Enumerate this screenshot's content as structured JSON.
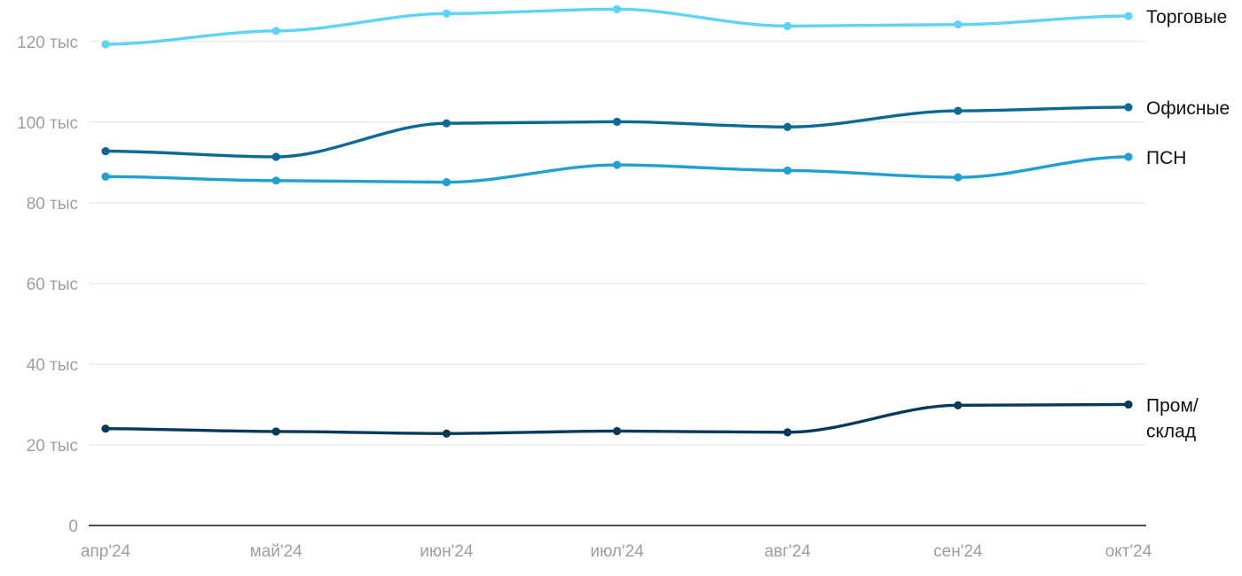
{
  "chart_data": {
    "type": "line",
    "title": "",
    "xlabel": "",
    "ylabel": "",
    "categories": [
      "апр'24",
      "май'24",
      "июн'24",
      "июл'24",
      "авг'24",
      "сен'24",
      "окт'24"
    ],
    "ylim": [
      0,
      125000
    ],
    "yticks": [
      0,
      20000,
      40000,
      60000,
      80000,
      100000,
      120000
    ],
    "ytick_labels": [
      "0",
      "20 тыс",
      "40 тыс",
      "60 тыс",
      "80 тыс",
      "100 тыс",
      "120 тыс"
    ],
    "grid": true,
    "legend": "series labels at right end of lines",
    "series": [
      {
        "name": "Торговые",
        "label_lines": [
          "Торговые"
        ],
        "color": "#5dd3f8",
        "values": [
          119300,
          122600,
          126900,
          128000,
          123800,
          124200,
          126300
        ]
      },
      {
        "name": "Офисные",
        "label_lines": [
          "Офисные"
        ],
        "color": "#0a6a94",
        "values": [
          92800,
          91400,
          99700,
          100100,
          98800,
          102800,
          103700
        ]
      },
      {
        "name": "ПСН",
        "label_lines": [
          "ПСН"
        ],
        "color": "#1fa0cf",
        "values": [
          86500,
          85500,
          85100,
          89400,
          88000,
          86300,
          91400
        ]
      },
      {
        "name": "Пром/склад",
        "label_lines": [
          "Пром/",
          "склад"
        ],
        "color": "#073a5a",
        "values": [
          24000,
          23300,
          22800,
          23400,
          23100,
          29800,
          30000
        ]
      }
    ]
  }
}
